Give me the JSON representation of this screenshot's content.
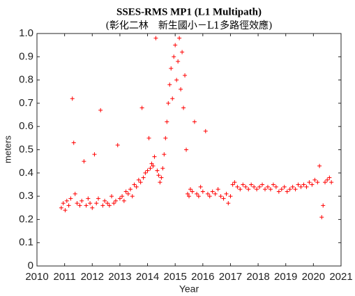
{
  "chart_data": {
    "type": "scatter",
    "title": "SSES-RMS MP1 (L1 Multipath)",
    "subtitle": "(彰化二林　新生國小－L1多路徑效應)",
    "xlabel": "Year",
    "ylabel": "meters",
    "color": "#ff0000",
    "marker": "+",
    "xlim": [
      2010,
      2021
    ],
    "xticks": [
      2010,
      2011,
      2012,
      2013,
      2014,
      2015,
      2016,
      2017,
      2018,
      2019,
      2020,
      2021
    ],
    "ylim": [
      0,
      1
    ],
    "yticks": [
      0,
      0.1,
      0.2,
      0.3,
      0.4,
      0.5,
      0.6,
      0.7,
      0.8,
      0.9,
      {
        "value": 1,
        "label": "1.0"
      }
    ],
    "x": [
      2010.88,
      2010.95,
      2011.02,
      2011.08,
      2011.15,
      2011.22,
      2011.28,
      2011.33,
      2011.38,
      2011.45,
      2011.55,
      2011.62,
      2011.7,
      2011.78,
      2011.85,
      2011.92,
      2012.0,
      2012.08,
      2012.15,
      2012.22,
      2012.3,
      2012.38,
      2012.45,
      2012.55,
      2012.62,
      2012.7,
      2012.78,
      2012.85,
      2012.92,
      2013.0,
      2013.08,
      2013.15,
      2013.22,
      2013.3,
      2013.38,
      2013.45,
      2013.52,
      2013.6,
      2013.68,
      2013.75,
      2013.8,
      2013.85,
      2013.92,
      2014.0,
      2014.05,
      2014.1,
      2014.15,
      2014.2,
      2014.25,
      2014.3,
      2014.35,
      2014.4,
      2014.45,
      2014.5,
      2014.55,
      2014.6,
      2014.65,
      2014.7,
      2014.75,
      2014.8,
      2014.85,
      2014.9,
      2014.95,
      2015.0,
      2015.05,
      2015.1,
      2015.15,
      2015.2,
      2015.25,
      2015.3,
      2015.35,
      2015.4,
      2015.45,
      2015.5,
      2015.55,
      2015.62,
      2015.7,
      2015.78,
      2015.85,
      2015.92,
      2016.0,
      2016.1,
      2016.18,
      2016.25,
      2016.35,
      2016.45,
      2016.55,
      2016.65,
      2016.75,
      2016.85,
      2016.92,
      2017.0,
      2017.08,
      2017.15,
      2017.25,
      2017.35,
      2017.45,
      2017.55,
      2017.65,
      2017.75,
      2017.85,
      2017.95,
      2018.05,
      2018.15,
      2018.25,
      2018.35,
      2018.45,
      2018.55,
      2018.65,
      2018.75,
      2018.85,
      2018.95,
      2019.05,
      2019.15,
      2019.25,
      2019.35,
      2019.45,
      2019.55,
      2019.65,
      2019.75,
      2019.85,
      2019.95,
      2020.05,
      2020.15,
      2020.22,
      2020.3,
      2020.35,
      2020.42,
      2020.5,
      2020.58,
      2020.65
    ],
    "values": [
      0.25,
      0.27,
      0.24,
      0.28,
      0.26,
      0.29,
      0.72,
      0.53,
      0.31,
      0.27,
      0.26,
      0.28,
      0.45,
      0.26,
      0.29,
      0.27,
      0.25,
      0.48,
      0.27,
      0.29,
      0.67,
      0.26,
      0.28,
      0.27,
      0.26,
      0.3,
      0.27,
      0.28,
      0.52,
      0.29,
      0.3,
      0.28,
      0.32,
      0.31,
      0.33,
      0.3,
      0.35,
      0.34,
      0.37,
      0.36,
      0.68,
      0.38,
      0.4,
      0.41,
      0.55,
      0.42,
      0.44,
      0.43,
      0.47,
      0.98,
      0.41,
      0.39,
      0.36,
      0.38,
      0.42,
      0.48,
      0.55,
      0.62,
      0.7,
      0.78,
      0.85,
      0.72,
      0.9,
      0.95,
      0.8,
      0.88,
      0.98,
      0.76,
      0.92,
      0.68,
      0.82,
      0.5,
      0.31,
      0.3,
      0.33,
      0.32,
      0.62,
      0.31,
      0.3,
      0.34,
      0.32,
      0.58,
      0.31,
      0.3,
      0.32,
      0.31,
      0.33,
      0.3,
      0.29,
      0.31,
      0.27,
      0.3,
      0.35,
      0.36,
      0.34,
      0.33,
      0.35,
      0.34,
      0.33,
      0.35,
      0.34,
      0.33,
      0.34,
      0.35,
      0.33,
      0.34,
      0.33,
      0.35,
      0.34,
      0.32,
      0.33,
      0.34,
      0.32,
      0.33,
      0.34,
      0.33,
      0.35,
      0.34,
      0.35,
      0.34,
      0.36,
      0.35,
      0.37,
      0.36,
      0.43,
      0.21,
      0.26,
      0.36,
      0.37,
      0.38,
      0.36
    ]
  }
}
